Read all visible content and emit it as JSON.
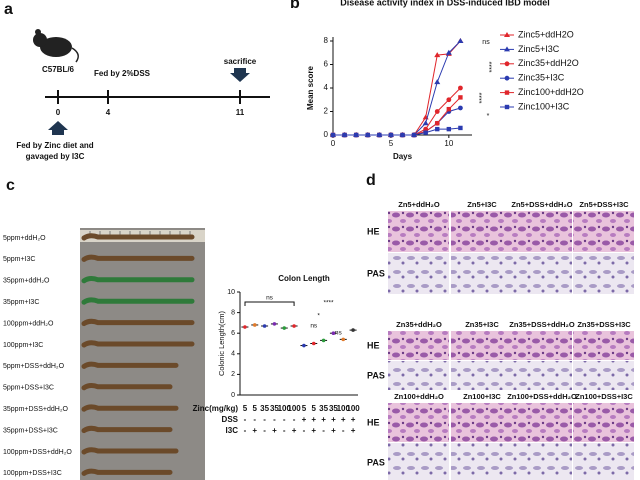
{
  "figure": {
    "panel_a": {
      "letter": "a",
      "strain": "C57BL/6",
      "dss_label": "Fed by 2%DSS",
      "end_label": "sacrifice",
      "timepoints": [
        "0",
        "4",
        "11"
      ],
      "diet_label": [
        "Fed by Zinc diet and",
        "gavaged by I3C"
      ]
    },
    "panel_b": {
      "letter": "b"
    },
    "panel_c": {
      "letter": "c",
      "photo_labels": [
        "5ppm+ddH₂O",
        "5ppm+I3C",
        "35ppm+ddH₂O",
        "35ppm+I3C",
        "100ppm+ddH₂O",
        "100ppm+I3C",
        "5ppm+DSS+ddH₂O",
        "5ppm+DSS+I3C",
        "35ppm+DSS+ddH₂O",
        "35ppm+DSS+I3C",
        "100ppm+DSS+ddH₂O",
        "100ppm+DSS+I3C"
      ]
    },
    "panel_d": {
      "letter": "d",
      "row_labels": [
        "HE",
        "PAS"
      ],
      "groups": [
        {
          "headers": [
            "Zn5+ddH₂O",
            "Zn5+I3C",
            "Zn5+DSS+ddH₂O",
            "Zn5+DSS+I3C"
          ]
        },
        {
          "headers": [
            "Zn35+ddH₂O",
            "Zn35+I3C",
            "Zn35+DSS+ddH₂O",
            "Zn35+DSS+I3C"
          ]
        },
        {
          "headers": [
            "Zn100+ddH₂O",
            "Zn100+I3C",
            "Zn100+DSS+ddH₂O",
            "Zn100+DSS+I3C"
          ]
        }
      ]
    }
  },
  "chart_data": [
    {
      "type": "line",
      "title": "Disease activity index in DSS-induced IBD model",
      "xlabel": "Days",
      "ylabel": "Mean score",
      "x": [
        0,
        1,
        2,
        3,
        4,
        5,
        6,
        7,
        8,
        9,
        10,
        11
      ],
      "xlim": [
        0,
        12
      ],
      "xticks": [
        0,
        5,
        10
      ],
      "ylim": [
        0,
        8
      ],
      "yticks": [
        0,
        2,
        4,
        6,
        8
      ],
      "series": [
        {
          "name": "Zinc5+ddH2O",
          "color": "#e0262b",
          "marker": "triangle",
          "values": [
            0,
            0,
            0,
            0,
            0,
            0,
            0,
            0,
            1.5,
            6.8,
            6.9,
            8
          ]
        },
        {
          "name": "Zinc5+I3C",
          "color": "#2b3bb0",
          "marker": "triangle",
          "values": [
            0,
            0,
            0,
            0,
            0,
            0,
            0,
            0,
            1,
            4.5,
            7,
            8
          ]
        },
        {
          "name": "Zinc35+ddH2O",
          "color": "#e0262b",
          "marker": "circle",
          "values": [
            0,
            0,
            0,
            0,
            0,
            0,
            0,
            0,
            0.5,
            2,
            3,
            4
          ]
        },
        {
          "name": "Zinc35+I3C",
          "color": "#2b3bb0",
          "marker": "circle",
          "values": [
            0,
            0,
            0,
            0,
            0,
            0,
            0,
            0,
            0.3,
            1,
            2,
            2.3
          ]
        },
        {
          "name": "Zinc100+ddH2O",
          "color": "#e0262b",
          "marker": "square",
          "values": [
            0,
            0,
            0,
            0,
            0,
            0,
            0,
            0,
            0.3,
            1,
            2.2,
            3.2
          ]
        },
        {
          "name": "Zinc100+I3C",
          "color": "#2b3bb0",
          "marker": "square",
          "values": [
            0,
            0,
            0,
            0,
            0,
            0,
            0,
            0,
            0.2,
            0.5,
            0.5,
            0.6
          ]
        }
      ],
      "annotations": [
        "ns",
        "****",
        "****",
        "*"
      ]
    },
    {
      "type": "scatter",
      "title": "Colon Length",
      "ylabel": "Colonic Length(cm)",
      "ylim": [
        0,
        10
      ],
      "yticks": [
        0,
        2,
        4,
        6,
        8,
        10
      ],
      "values": [
        6.6,
        6.8,
        6.7,
        6.9,
        6.5,
        6.7,
        4.8,
        5.0,
        5.3,
        6.0,
        5.4,
        6.3
      ],
      "colors": [
        "#e0262b",
        "#e07a2b",
        "#2b3bb0",
        "#7a2bb0",
        "#2b9b3b",
        "#e0262b",
        "#2b3bb0",
        "#e0262b",
        "#2b9b3b",
        "#7a2bb0",
        "#e07a2b",
        "#333333"
      ],
      "annotations": [
        "ns",
        "****",
        "*",
        "ns",
        "ns"
      ],
      "table": {
        "rows": [
          {
            "label": "Zinc(mg/kg)",
            "cells": [
              "5",
              "5",
              "35",
              "35",
              "100",
              "100",
              "5",
              "5",
              "35",
              "35",
              "100",
              "100"
            ]
          },
          {
            "label": "DSS",
            "cells": [
              "-",
              "-",
              "-",
              "-",
              "-",
              "-",
              "+",
              "+",
              "+",
              "+",
              "+",
              "+"
            ]
          },
          {
            "label": "I3C",
            "cells": [
              "-",
              "+",
              "-",
              "+",
              "-",
              "+",
              "-",
              "+",
              "-",
              "+",
              "-",
              "+"
            ]
          }
        ]
      }
    }
  ]
}
